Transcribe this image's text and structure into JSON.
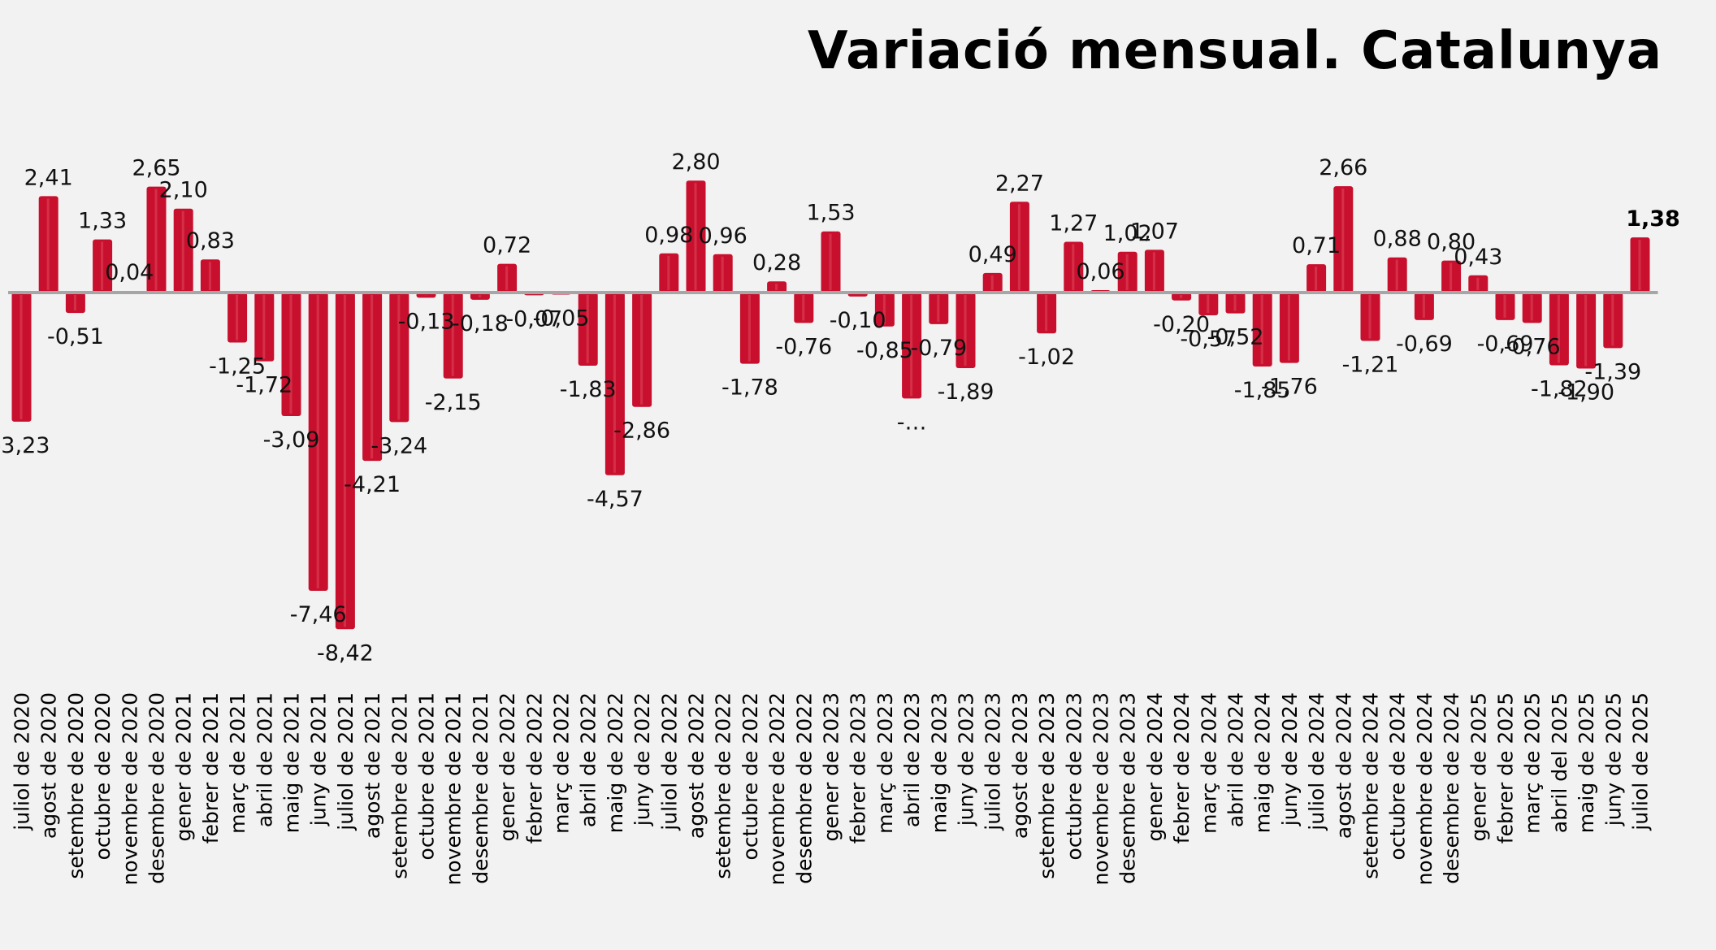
{
  "chart_data": {
    "type": "bar",
    "title": "Variació mensual. Catalunya",
    "xlabel": "",
    "ylabel": "",
    "ylim": [
      -9,
      3.5
    ],
    "grid": false,
    "bar_color": "#c8102e",
    "zero_line_color": "#a6a6a6",
    "categories": [
      "juliol de 2020",
      "agost de 2020",
      "setembre de 2020",
      "octubre de 2020",
      "novembre de 2020",
      "desembre de 2020",
      "gener de 2021",
      "febrer de 2021",
      "març de 2021",
      "abril de 2021",
      "maig de 2021",
      "juny de 2021",
      "juliol de 2021",
      "agost de 2021",
      "setembre de 2021",
      "octubre de 2021",
      "novembre de 2021",
      "desembre de 2021",
      "gener de 2022",
      "febrer de 2022",
      "març de 2022",
      "abril de 2022",
      "maig de 2022",
      "juny de 2022",
      "juliol de 2022",
      "agost de 2022",
      "setembre de 2022",
      "octubre de 2022",
      "novembre de 2022",
      "desembre de 2022",
      "gener de 2023",
      "febrer de 2023",
      "març de 2023",
      "abril de 2023",
      "maig de 2023",
      "juny de 2023",
      "juliol de 2023",
      "agost de 2023",
      "setembre de 2023",
      "octubre de 2023",
      "novembre de 2023",
      "desembre de 2023",
      "gener de 2024",
      "febrer de 2024",
      "març de 2024",
      "abril de 2024",
      "maig de 2024",
      "juny de 2024",
      "juliol de 2024",
      "agost de 2024",
      "setembre de 2024",
      "octubre de 2024",
      "novembre de 2024",
      "desembre de 2024",
      "gener de 2025",
      "febrer de 2025",
      "març de 2025",
      "abril del 2025",
      "maig de 2025",
      "juny de 2025",
      "juliol de 2025"
    ],
    "values": [
      -3.23,
      2.41,
      -0.51,
      1.33,
      0.04,
      2.65,
      2.1,
      0.83,
      -1.25,
      -1.72,
      -3.09,
      -7.46,
      -8.42,
      -4.21,
      -3.24,
      -0.13,
      -2.15,
      -0.18,
      0.72,
      -0.07,
      -0.05,
      -1.83,
      -4.57,
      -2.86,
      0.98,
      2.8,
      0.96,
      -1.78,
      0.28,
      -0.76,
      1.53,
      -0.1,
      -0.85,
      -2.65,
      -0.79,
      -1.89,
      0.49,
      2.27,
      -1.02,
      1.27,
      0.06,
      1.02,
      1.07,
      -0.2,
      -0.57,
      -0.52,
      -1.85,
      -1.76,
      0.71,
      2.66,
      -1.21,
      0.88,
      -0.69,
      0.8,
      0.43,
      -0.69,
      -0.76,
      -1.82,
      -1.9,
      -1.39,
      1.38
    ],
    "labels": [
      "-3,23",
      "2,41",
      "-0,51",
      "1,33",
      "0,04",
      "2,65",
      "2,10",
      "0,83",
      "-1,25",
      "-1,72",
      "-3,09",
      "-7,46",
      "-8,42",
      "-4,21",
      "-3,24",
      "-0,13",
      "-2,15",
      "-0,18",
      "0,72",
      "-0,07",
      "-0,05",
      "-1,83",
      "-4,57",
      "-2,86",
      "0,98",
      "2,80",
      "0,96",
      "-1,78",
      "0,28",
      "-0,76",
      "1,53",
      "-0,10",
      "-0,85",
      "-…",
      "-0,79",
      "-1,89",
      "0,49",
      "2,27",
      "-1,02",
      "1,27",
      "0,06",
      "1,02",
      "1,07",
      "-0,20",
      "-0,57",
      "-0,52",
      "-1,85",
      "-1,76",
      "0,71",
      "2,66",
      "-1,21",
      "0,88",
      "-0,69",
      "0,80",
      "0,43",
      "-0,69",
      "-0,76",
      "-1,82",
      "-1,90",
      "-1,39",
      "1,38"
    ],
    "highlight_last": true
  }
}
